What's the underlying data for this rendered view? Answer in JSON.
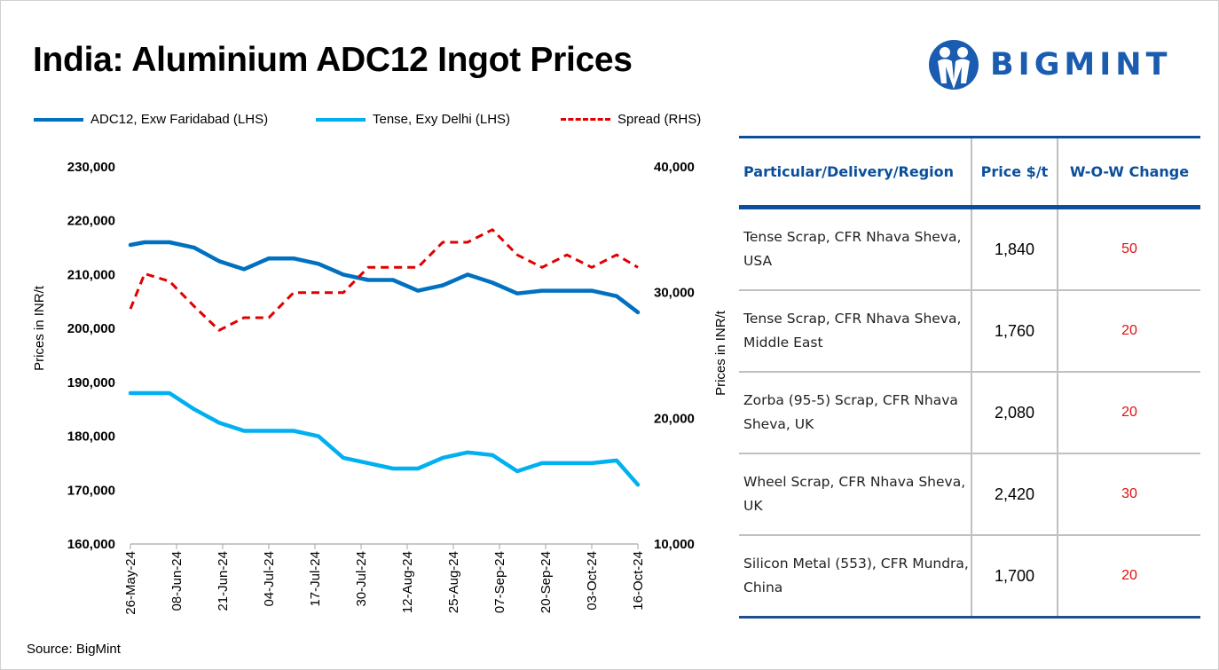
{
  "title": "India: Aluminium ADC12 Ingot Prices",
  "logo": {
    "text": "BIGMINT",
    "color": "#1a5cb0"
  },
  "source": "Source: BigMint",
  "chart_data": {
    "type": "line",
    "title": "India: Aluminium ADC12 Ingot Prices",
    "x": [
      "26-May-24",
      "30-May-24",
      "06-Jun-24",
      "13-Jun-24",
      "20-Jun-24",
      "27-Jun-24",
      "04-Jul-24",
      "11-Jul-24",
      "18-Jul-24",
      "25-Jul-24",
      "01-Aug-24",
      "08-Aug-24",
      "15-Aug-24",
      "22-Aug-24",
      "29-Aug-24",
      "05-Sep-24",
      "12-Sep-24",
      "19-Sep-24",
      "26-Sep-24",
      "03-Oct-24",
      "10-Oct-24",
      "16-Oct-24"
    ],
    "x_ticks": [
      "26-May-24",
      "08-Jun-24",
      "21-Jun-24",
      "04-Jul-24",
      "17-Jul-24",
      "30-Jul-24",
      "12-Aug-24",
      "25-Aug-24",
      "07-Sep-24",
      "20-Sep-24",
      "03-Oct-24",
      "16-Oct-24"
    ],
    "series": [
      {
        "name": "ADC12, Exw Faridabad (LHS)",
        "axis": "left",
        "color": "#0070c0",
        "style": "solid",
        "values": [
          215500,
          216000,
          216000,
          215000,
          212500,
          211000,
          213000,
          213000,
          212000,
          210000,
          209000,
          209000,
          207000,
          208000,
          210000,
          208500,
          206500,
          207000,
          207000,
          207000,
          206000,
          203000
        ]
      },
      {
        "name": "Tense, Exy Delhi (LHS)",
        "axis": "left",
        "color": "#00b0f0",
        "style": "solid",
        "values": [
          188000,
          188000,
          188000,
          185000,
          182500,
          181000,
          181000,
          181000,
          180000,
          176000,
          175000,
          174000,
          174000,
          176000,
          177000,
          176500,
          173500,
          175000,
          175000,
          175000,
          175500,
          171000
        ]
      },
      {
        "name": "Spread (RHS)",
        "axis": "right",
        "color": "#e00000",
        "style": "dashed",
        "values": [
          28700,
          31500,
          30900,
          28900,
          27000,
          28000,
          28000,
          30000,
          30000,
          30000,
          32000,
          32000,
          32000,
          34000,
          34000,
          35000,
          33000,
          32000,
          33000,
          32000,
          33000,
          32000
        ]
      }
    ],
    "ylabel": "Prices in INR/t",
    "ylabel_right": "Prices in INR/t",
    "ylim": [
      160000,
      230000
    ],
    "ylim_right": [
      10000,
      40000
    ],
    "y_ticks": [
      "230,000",
      "220,000",
      "210,000",
      "200,000",
      "190,000",
      "180,000",
      "170,000",
      "160,000"
    ],
    "y_ticks_right": [
      "40,000",
      "30,000",
      "20,000",
      "10,000"
    ],
    "grid": false,
    "legend": "top"
  },
  "table": {
    "headers": [
      "Particular/Delivery/Region",
      "Price $/t",
      "W-O-W Change"
    ],
    "rows": [
      {
        "item": " Tense Scrap, CFR Nhava Sheva, USA",
        "price": "1,840",
        "change": "50"
      },
      {
        "item": "Tense Scrap, CFR Nhava Sheva, Middle East",
        "price": "1,760",
        "change": "20"
      },
      {
        "item": "Zorba (95-5) Scrap, CFR Nhava Sheva, UK",
        "price": "2,080",
        "change": "20"
      },
      {
        "item": "Wheel Scrap, CFR Nhava Sheva, UK",
        "price": "2,420",
        "change": "30"
      },
      {
        "item": "Silicon Metal (553), CFR Mundra, China",
        "price": "1,700",
        "change": "20"
      }
    ]
  }
}
